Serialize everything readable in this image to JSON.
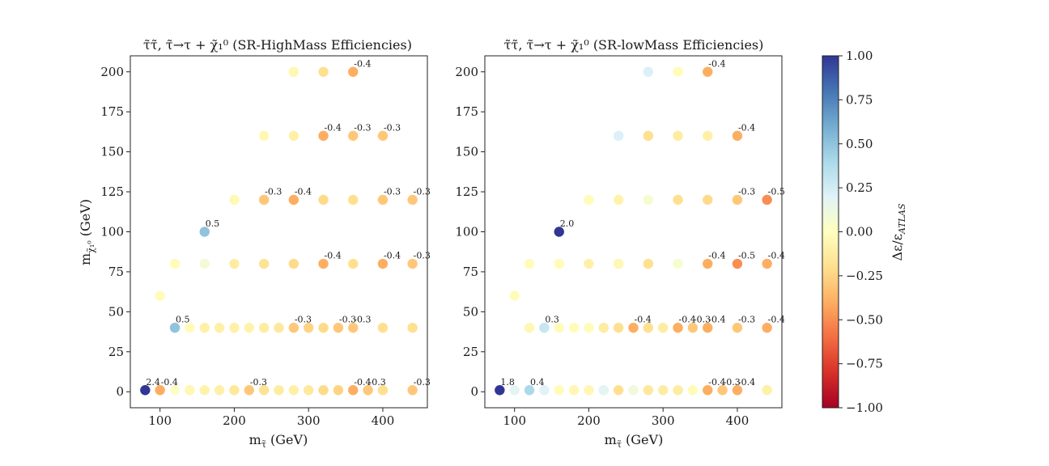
{
  "chart_data": [
    {
      "type": "scatter",
      "title": "τ̃τ̃, τ̃→τ + χ̃₁⁰ (SR-HighMass Efficiencies)",
      "xlabel": "m_τ̃ (GeV)",
      "ylabel": "m_χ̃₁⁰ (GeV)",
      "xlim": [
        60,
        460
      ],
      "ylim": [
        -10,
        210
      ],
      "xticks": [
        100,
        200,
        300,
        400
      ],
      "yticks": [
        0,
        25,
        50,
        75,
        100,
        125,
        150,
        175,
        200
      ],
      "points": [
        {
          "x": 80,
          "y": 1,
          "v": 2.4,
          "label": "2.4"
        },
        {
          "x": 100,
          "y": 1,
          "v": -0.4,
          "label": "-0.4"
        },
        {
          "x": 120,
          "y": 1,
          "v": 0.02
        },
        {
          "x": 140,
          "y": 1,
          "v": -0.05
        },
        {
          "x": 160,
          "y": 1,
          "v": -0.08
        },
        {
          "x": 180,
          "y": 1,
          "v": -0.1
        },
        {
          "x": 200,
          "y": 1,
          "v": -0.15
        },
        {
          "x": 220,
          "y": 1,
          "v": -0.3,
          "label": "-0.3"
        },
        {
          "x": 240,
          "y": 1,
          "v": -0.18
        },
        {
          "x": 260,
          "y": 1,
          "v": -0.12
        },
        {
          "x": 280,
          "y": 1,
          "v": -0.1
        },
        {
          "x": 300,
          "y": 1,
          "v": -0.14
        },
        {
          "x": 320,
          "y": 1,
          "v": -0.22
        },
        {
          "x": 340,
          "y": 1,
          "v": -0.25
        },
        {
          "x": 360,
          "y": 1,
          "v": -0.4,
          "label": "-0.4"
        },
        {
          "x": 380,
          "y": 1,
          "v": -0.3,
          "label": "-0.3"
        },
        {
          "x": 400,
          "y": 1,
          "v": -0.2
        },
        {
          "x": 440,
          "y": 1,
          "v": -0.3,
          "label": "-0.3"
        },
        {
          "x": 120,
          "y": 40,
          "v": 0.5,
          "label": "0.5"
        },
        {
          "x": 140,
          "y": 40,
          "v": -0.02
        },
        {
          "x": 160,
          "y": 40,
          "v": -0.1
        },
        {
          "x": 180,
          "y": 40,
          "v": -0.1
        },
        {
          "x": 200,
          "y": 40,
          "v": -0.1
        },
        {
          "x": 220,
          "y": 40,
          "v": -0.08
        },
        {
          "x": 240,
          "y": 40,
          "v": -0.12
        },
        {
          "x": 260,
          "y": 40,
          "v": -0.15
        },
        {
          "x": 280,
          "y": 40,
          "v": -0.3,
          "label": "-0.3"
        },
        {
          "x": 300,
          "y": 40,
          "v": -0.25
        },
        {
          "x": 320,
          "y": 40,
          "v": -0.22
        },
        {
          "x": 340,
          "y": 40,
          "v": -0.3,
          "label": "-0.3"
        },
        {
          "x": 360,
          "y": 40,
          "v": -0.3,
          "label": "-0.3"
        },
        {
          "x": 400,
          "y": 40,
          "v": -0.2
        },
        {
          "x": 440,
          "y": 40,
          "v": -0.2
        },
        {
          "x": 100,
          "y": 60,
          "v": -0.02
        },
        {
          "x": 120,
          "y": 80,
          "v": -0.02
        },
        {
          "x": 160,
          "y": 80,
          "v": 0.08
        },
        {
          "x": 200,
          "y": 80,
          "v": -0.12
        },
        {
          "x": 240,
          "y": 80,
          "v": -0.18
        },
        {
          "x": 280,
          "y": 80,
          "v": -0.22
        },
        {
          "x": 320,
          "y": 80,
          "v": -0.4,
          "label": "-0.4"
        },
        {
          "x": 360,
          "y": 80,
          "v": -0.2
        },
        {
          "x": 400,
          "y": 80,
          "v": -0.4,
          "label": "-0.4"
        },
        {
          "x": 440,
          "y": 80,
          "v": -0.3,
          "label": "-0.3"
        },
        {
          "x": 160,
          "y": 100,
          "v": 0.5,
          "label": "0.5"
        },
        {
          "x": 200,
          "y": 120,
          "v": -0.04
        },
        {
          "x": 240,
          "y": 120,
          "v": -0.3,
          "label": "-0.3"
        },
        {
          "x": 280,
          "y": 120,
          "v": -0.4,
          "label": "-0.4"
        },
        {
          "x": 320,
          "y": 120,
          "v": -0.22
        },
        {
          "x": 360,
          "y": 120,
          "v": -0.2
        },
        {
          "x": 400,
          "y": 120,
          "v": -0.3,
          "label": "-0.3"
        },
        {
          "x": 440,
          "y": 120,
          "v": -0.3,
          "label": "-0.3"
        },
        {
          "x": 240,
          "y": 160,
          "v": -0.05
        },
        {
          "x": 280,
          "y": 160,
          "v": -0.1
        },
        {
          "x": 320,
          "y": 160,
          "v": -0.4,
          "label": "-0.4"
        },
        {
          "x": 360,
          "y": 160,
          "v": -0.3,
          "label": "-0.3"
        },
        {
          "x": 400,
          "y": 160,
          "v": -0.3,
          "label": "-0.3"
        },
        {
          "x": 280,
          "y": 200,
          "v": -0.05
        },
        {
          "x": 320,
          "y": 200,
          "v": -0.2
        },
        {
          "x": 360,
          "y": 200,
          "v": -0.4,
          "label": "-0.4"
        }
      ]
    },
    {
      "type": "scatter",
      "title": "τ̃τ̃, τ̃→τ + χ̃₁⁰ (SR-lowMass Efficiencies)",
      "xlabel": "m_τ̃ (GeV)",
      "ylabel": "",
      "xlim": [
        60,
        460
      ],
      "ylim": [
        -10,
        210
      ],
      "xticks": [
        100,
        200,
        300,
        400
      ],
      "yticks": [
        0,
        25,
        50,
        75,
        100,
        125,
        150,
        175,
        200
      ],
      "points": [
        {
          "x": 80,
          "y": 1,
          "v": 1.8,
          "label": "1.8"
        },
        {
          "x": 100,
          "y": 1,
          "v": 0.18
        },
        {
          "x": 120,
          "y": 1,
          "v": 0.4,
          "label": "0.4"
        },
        {
          "x": 140,
          "y": 1,
          "v": 0.2
        },
        {
          "x": 160,
          "y": 1,
          "v": -0.02
        },
        {
          "x": 180,
          "y": 1,
          "v": -0.05
        },
        {
          "x": 200,
          "y": 1,
          "v": -0.05
        },
        {
          "x": 220,
          "y": 1,
          "v": 0.18
        },
        {
          "x": 240,
          "y": 1,
          "v": -0.2
        },
        {
          "x": 260,
          "y": 1,
          "v": 0.1
        },
        {
          "x": 280,
          "y": 1,
          "v": -0.15
        },
        {
          "x": 300,
          "y": 1,
          "v": -0.12
        },
        {
          "x": 320,
          "y": 1,
          "v": -0.12
        },
        {
          "x": 340,
          "y": 1,
          "v": -0.02
        },
        {
          "x": 360,
          "y": 1,
          "v": -0.4,
          "label": "-0.4"
        },
        {
          "x": 380,
          "y": 1,
          "v": -0.3,
          "label": "-0.3"
        },
        {
          "x": 400,
          "y": 1,
          "v": -0.4,
          "label": "-0.4"
        },
        {
          "x": 440,
          "y": 1,
          "v": -0.1
        },
        {
          "x": 120,
          "y": 40,
          "v": -0.05
        },
        {
          "x": 140,
          "y": 40,
          "v": 0.3,
          "label": "0.3"
        },
        {
          "x": 160,
          "y": 40,
          "v": -0.02
        },
        {
          "x": 180,
          "y": 40,
          "v": -0.02
        },
        {
          "x": 200,
          "y": 40,
          "v": -0.02
        },
        {
          "x": 220,
          "y": 40,
          "v": -0.12
        },
        {
          "x": 240,
          "y": 40,
          "v": -0.2
        },
        {
          "x": 260,
          "y": 40,
          "v": -0.4,
          "label": "-0.4"
        },
        {
          "x": 280,
          "y": 40,
          "v": -0.2
        },
        {
          "x": 300,
          "y": 40,
          "v": -0.12
        },
        {
          "x": 320,
          "y": 40,
          "v": -0.4,
          "label": "-0.4"
        },
        {
          "x": 340,
          "y": 40,
          "v": -0.3,
          "label": "-0.3"
        },
        {
          "x": 360,
          "y": 40,
          "v": -0.4,
          "label": "-0.4"
        },
        {
          "x": 400,
          "y": 40,
          "v": -0.3,
          "label": "-0.3"
        },
        {
          "x": 440,
          "y": 40,
          "v": -0.4,
          "label": "-0.4"
        },
        {
          "x": 100,
          "y": 60,
          "v": -0.02
        },
        {
          "x": 120,
          "y": 80,
          "v": -0.02
        },
        {
          "x": 160,
          "y": 80,
          "v": -0.02
        },
        {
          "x": 200,
          "y": 80,
          "v": -0.1
        },
        {
          "x": 240,
          "y": 80,
          "v": -0.05
        },
        {
          "x": 280,
          "y": 80,
          "v": -0.2
        },
        {
          "x": 320,
          "y": 80,
          "v": 0.05
        },
        {
          "x": 360,
          "y": 80,
          "v": -0.4,
          "label": "-0.4"
        },
        {
          "x": 400,
          "y": 80,
          "v": -0.5,
          "label": "-0.5"
        },
        {
          "x": 440,
          "y": 80,
          "v": -0.4,
          "label": "-0.4"
        },
        {
          "x": 160,
          "y": 100,
          "v": 2.0,
          "label": "2.0"
        },
        {
          "x": 200,
          "y": 120,
          "v": -0.02
        },
        {
          "x": 240,
          "y": 120,
          "v": -0.08
        },
        {
          "x": 280,
          "y": 120,
          "v": 0.05
        },
        {
          "x": 320,
          "y": 120,
          "v": -0.2
        },
        {
          "x": 360,
          "y": 120,
          "v": -0.22
        },
        {
          "x": 400,
          "y": 120,
          "v": -0.3,
          "label": "-0.3"
        },
        {
          "x": 440,
          "y": 120,
          "v": -0.5,
          "label": "-0.5"
        },
        {
          "x": 240,
          "y": 160,
          "v": 0.22
        },
        {
          "x": 280,
          "y": 160,
          "v": -0.2
        },
        {
          "x": 320,
          "y": 160,
          "v": -0.12
        },
        {
          "x": 360,
          "y": 160,
          "v": -0.1
        },
        {
          "x": 400,
          "y": 160,
          "v": -0.4,
          "label": "-0.4"
        },
        {
          "x": 280,
          "y": 200,
          "v": 0.22
        },
        {
          "x": 320,
          "y": 200,
          "v": -0.02
        },
        {
          "x": 360,
          "y": 200,
          "v": -0.4,
          "label": "-0.4"
        }
      ]
    }
  ],
  "colorbar": {
    "label": "Δε/ε_ATLAS",
    "range": [
      -1.0,
      1.0
    ],
    "ticks": [
      "1.00",
      "0.75",
      "0.50",
      "0.25",
      "0.00",
      "−0.25",
      "−0.50",
      "−0.75",
      "−1.00"
    ],
    "colormap": "RdYlBu",
    "stops": [
      "#a50026",
      "#d73027",
      "#f46d43",
      "#fdae61",
      "#fee090",
      "#ffffbf",
      "#e0f3f8",
      "#abd9e9",
      "#74add1",
      "#4575b4",
      "#313695"
    ]
  }
}
